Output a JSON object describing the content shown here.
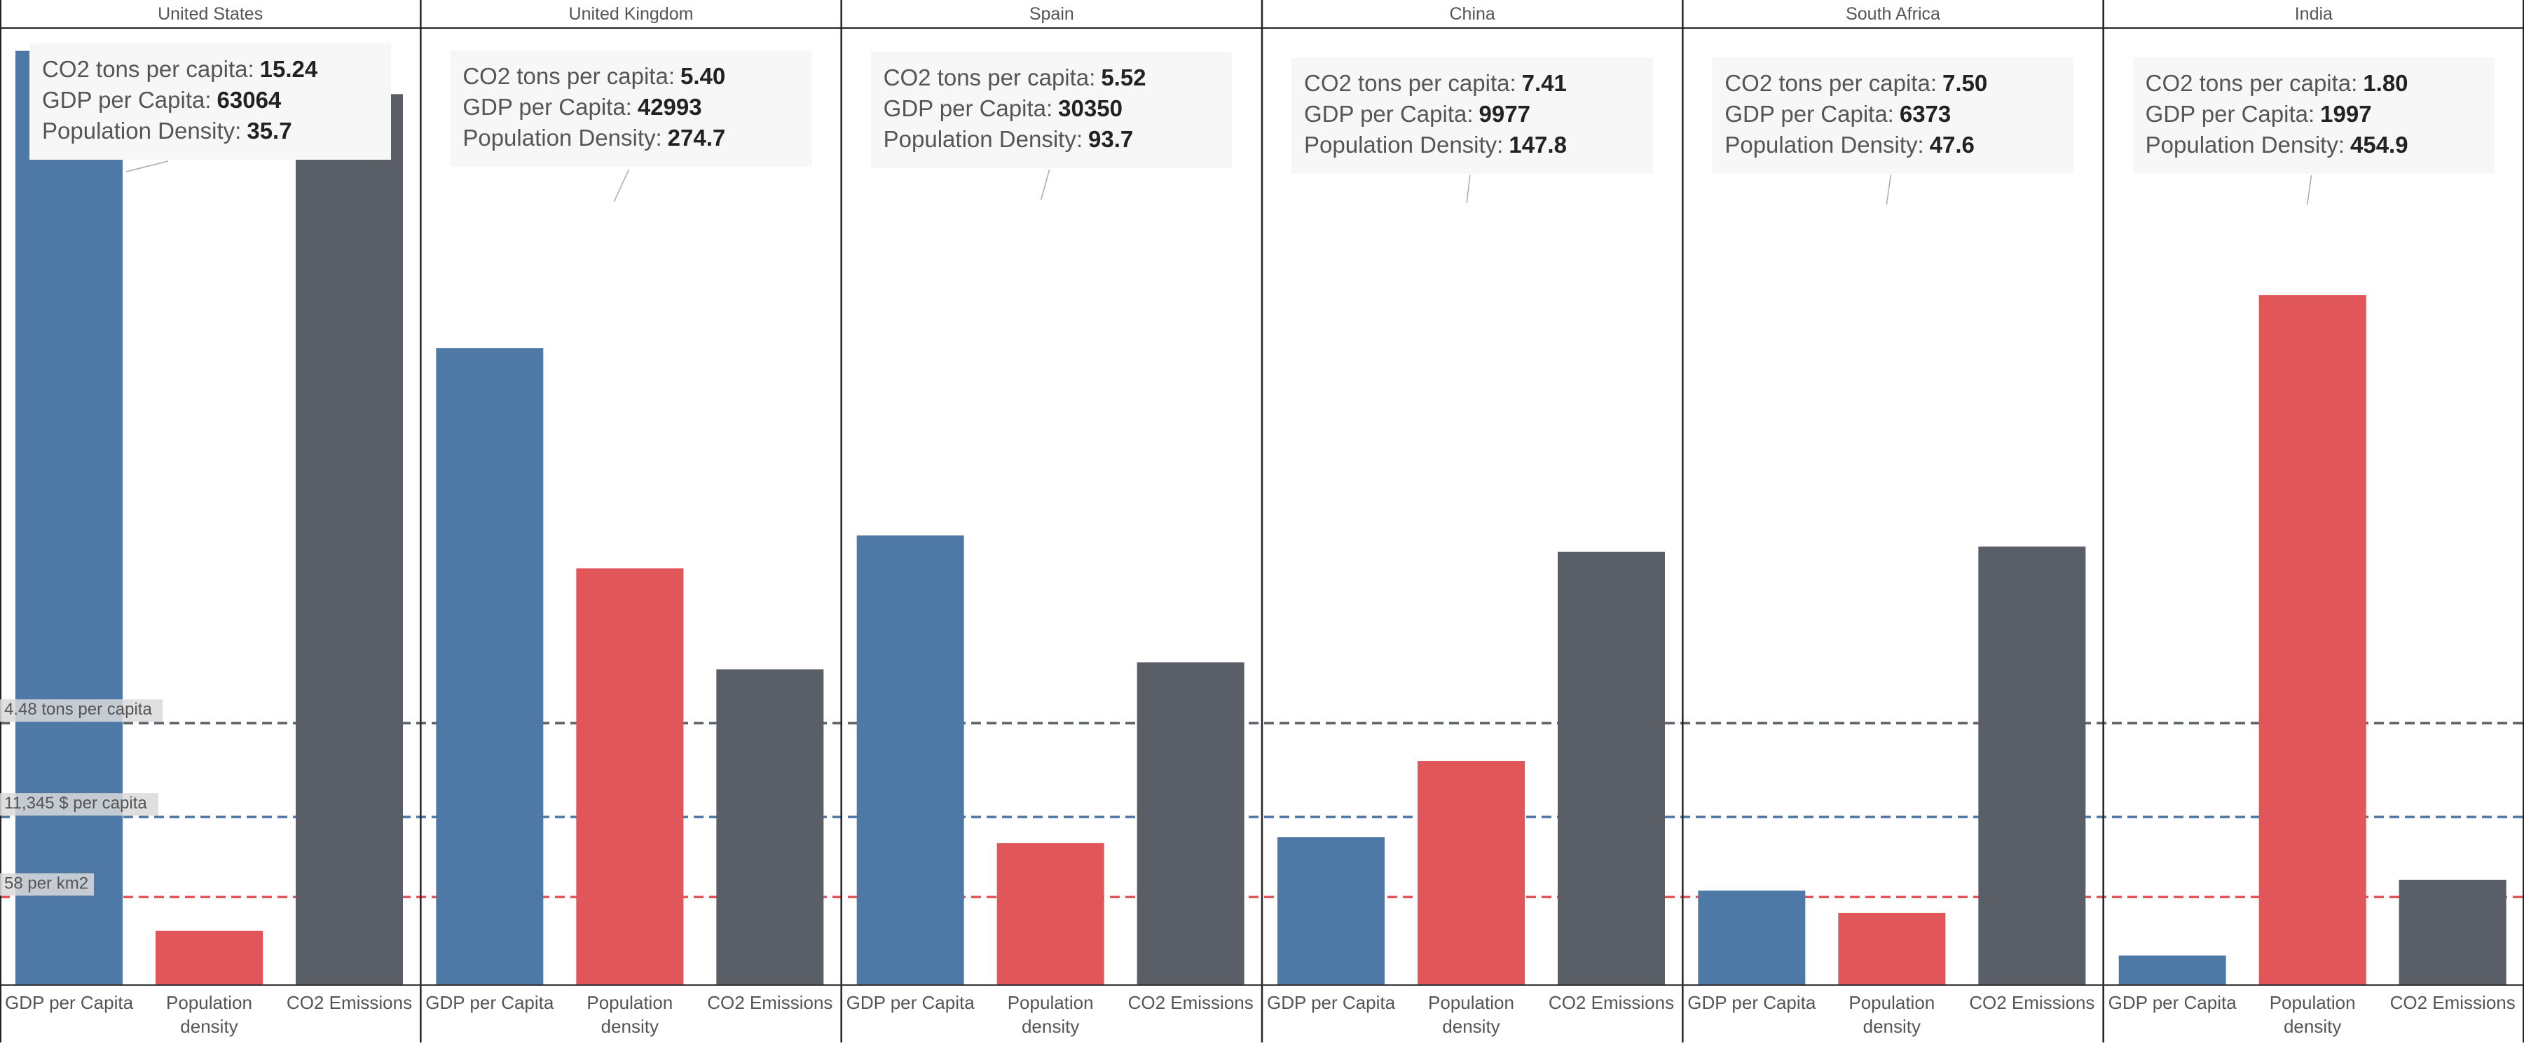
{
  "chart_data": {
    "type": "bar",
    "categories": [
      "GDP per Capita",
      "Population\ndensity",
      "CO2 Emissions"
    ],
    "panels": [
      {
        "country": "United States",
        "bars": [
          {
            "measure": "GDP per Capita",
            "value": 63064
          },
          {
            "measure": "Population density",
            "value": 35.7
          },
          {
            "measure": "CO2 Emissions",
            "value": 15.24
          }
        ],
        "tooltip": [
          {
            "label": "CO2 tons per capita:",
            "value": "15.24"
          },
          {
            "label": "GDP per Capita:",
            "value": "63064"
          },
          {
            "label": "Population Density:",
            "value": "35.7"
          }
        ]
      },
      {
        "country": "United Kingdom",
        "bars": [
          {
            "measure": "GDP per Capita",
            "value": 42993
          },
          {
            "measure": "Population density",
            "value": 274.7
          },
          {
            "measure": "CO2 Emissions",
            "value": 5.4
          }
        ],
        "tooltip": [
          {
            "label": "CO2 tons per capita:",
            "value": "5.40"
          },
          {
            "label": "GDP per Capita:",
            "value": "42993"
          },
          {
            "label": "Population Density:",
            "value": "274.7"
          }
        ]
      },
      {
        "country": "Spain",
        "bars": [
          {
            "measure": "GDP per Capita",
            "value": 30350
          },
          {
            "measure": "Population density",
            "value": 93.7
          },
          {
            "measure": "CO2 Emissions",
            "value": 5.52
          }
        ],
        "tooltip": [
          {
            "label": "CO2 tons per capita:",
            "value": "5.52"
          },
          {
            "label": "GDP per Capita:",
            "value": "30350"
          },
          {
            "label": "Population Density:",
            "value": "93.7"
          }
        ]
      },
      {
        "country": "China",
        "bars": [
          {
            "measure": "GDP per Capita",
            "value": 9977
          },
          {
            "measure": "Population density",
            "value": 147.8
          },
          {
            "measure": "CO2 Emissions",
            "value": 7.41
          }
        ],
        "tooltip": [
          {
            "label": "CO2 tons per capita:",
            "value": "7.41"
          },
          {
            "label": "GDP per Capita:",
            "value": "9977"
          },
          {
            "label": "Population Density:",
            "value": "147.8"
          }
        ]
      },
      {
        "country": "South Africa",
        "bars": [
          {
            "measure": "GDP per Capita",
            "value": 6373
          },
          {
            "measure": "Population density",
            "value": 47.6
          },
          {
            "measure": "CO2 Emissions",
            "value": 7.5
          }
        ],
        "tooltip": [
          {
            "label": "CO2 tons per capita:",
            "value": "7.50"
          },
          {
            "label": "GDP per Capita:",
            "value": "6373"
          },
          {
            "label": "Population Density:",
            "value": "47.6"
          }
        ]
      },
      {
        "country": "India",
        "bars": [
          {
            "measure": "GDP per Capita",
            "value": 1997
          },
          {
            "measure": "Population density",
            "value": 454.9
          },
          {
            "measure": "CO2 Emissions",
            "value": 1.8
          }
        ],
        "tooltip": [
          {
            "label": "CO2 tons per capita:",
            "value": "1.80"
          },
          {
            "label": "GDP per Capita:",
            "value": "1997"
          },
          {
            "label": "Population Density:",
            "value": "454.9"
          }
        ]
      }
    ],
    "measure_scales": {
      "GDP per Capita": {
        "max": 66500
      },
      "Population density": {
        "max": 649.4
      },
      "CO2 Emissions": {
        "max": 16.85
      }
    },
    "reference_lines": [
      {
        "label": "4.48 tons per capita",
        "color": "#5a5e66"
      },
      {
        "label": "11,345 $ per capita",
        "color": "#4a76a8"
      },
      {
        "label": "58 per km2",
        "color": "#e15759"
      }
    ],
    "colors": {
      "GDP per Capita": "#4e79a7",
      "Population density": "#e15759",
      "CO2 Emissions": "#5a5e66",
      "panel_border": "#222222",
      "tooltip_bg": "#f7f7f7",
      "text": "#555555",
      "tooltip_text": "#555555",
      "tooltip_value": "#222222"
    },
    "grid": false,
    "legend": "none"
  }
}
